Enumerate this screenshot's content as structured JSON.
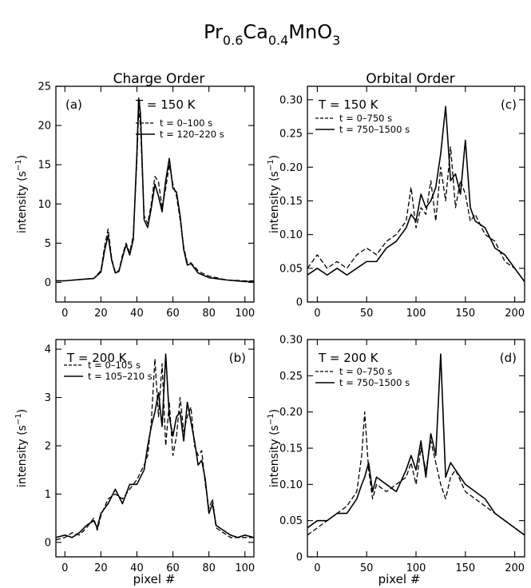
{
  "figure": {
    "title_main": "Pr",
    "title_sub1": "0.6",
    "title_ca": "Ca",
    "title_sub2": "0.4",
    "title_mno": "MnO",
    "title_sub3": "3",
    "col_left": "Charge Order",
    "col_right": "Orbital Order",
    "xlabel": "pixel #",
    "ylabel_left": "intensity (s",
    "ylabel_right": "intensity (s",
    "ylabel_exp": "−1",
    "ylabel_close": ")"
  },
  "chart_data": [
    {
      "id": "a",
      "type": "line",
      "panel_label": "(a)",
      "temperature": "T = 150 K",
      "xlabel": "",
      "ylabel": "intensity (s−1)",
      "xlim": [
        -5,
        105
      ],
      "ylim": [
        -2.5,
        25
      ],
      "xticks": [
        0,
        20,
        40,
        60,
        80,
        100
      ],
      "yticks": [
        0,
        5,
        10,
        15,
        20,
        25
      ],
      "legend_position": "top-right",
      "series": [
        {
          "name": "t = 0–100 s",
          "style": "dashed",
          "x": [
            -5,
            0,
            10,
            16,
            20,
            22,
            24,
            26,
            28,
            30,
            32,
            34,
            36,
            38,
            40,
            41,
            42,
            44,
            46,
            48,
            50,
            52,
            54,
            56,
            58,
            60,
            62,
            64,
            66,
            68,
            70,
            72,
            74,
            76,
            80,
            90,
            100,
            105
          ],
          "y": [
            0.2,
            0.2,
            0.4,
            0.5,
            1.5,
            4.5,
            6.8,
            3.0,
            1.3,
            1.5,
            3.5,
            5.0,
            3.8,
            6.0,
            15.5,
            22.0,
            20.0,
            8.5,
            7.5,
            10.0,
            13.5,
            12.8,
            9.5,
            12.0,
            15.0,
            12.5,
            11.0,
            8.0,
            4.5,
            2.5,
            2.5,
            2.0,
            1.5,
            1.2,
            0.8,
            0.3,
            0.2,
            0.2
          ]
        },
        {
          "name": "t = 120–220 s",
          "style": "solid",
          "x": [
            -5,
            0,
            10,
            16,
            20,
            22,
            24,
            26,
            28,
            30,
            32,
            34,
            36,
            38,
            40,
            41,
            42,
            44,
            46,
            48,
            50,
            52,
            54,
            56,
            58,
            60,
            62,
            64,
            66,
            68,
            70,
            72,
            74,
            76,
            80,
            90,
            100,
            105
          ],
          "y": [
            0.2,
            0.2,
            0.4,
            0.5,
            1.3,
            4.0,
            6.0,
            2.8,
            1.2,
            1.4,
            3.2,
            4.8,
            3.5,
            5.5,
            16.5,
            23.5,
            21.5,
            8.0,
            7.0,
            9.5,
            12.5,
            11.0,
            9.0,
            13.0,
            15.8,
            12.0,
            11.5,
            8.5,
            4.2,
            2.2,
            2.4,
            1.8,
            1.2,
            1.0,
            0.6,
            0.3,
            0.1,
            0.1
          ]
        }
      ]
    },
    {
      "id": "b",
      "type": "line",
      "panel_label": "(b)",
      "temperature": "T = 200 K",
      "xlabel": "pixel #",
      "ylabel": "intensity (s−1)",
      "xlim": [
        -5,
        105
      ],
      "ylim": [
        -0.3,
        4.2
      ],
      "xticks": [
        0,
        20,
        40,
        60,
        80,
        100
      ],
      "yticks": [
        0,
        1,
        2,
        3,
        4
      ],
      "legend_position": "top-left",
      "series": [
        {
          "name": "t = 0–105 s",
          "style": "dashed",
          "x": [
            -5,
            0,
            4,
            8,
            12,
            16,
            18,
            20,
            24,
            28,
            32,
            36,
            40,
            44,
            46,
            48,
            50,
            52,
            54,
            56,
            58,
            60,
            62,
            64,
            66,
            68,
            70,
            72,
            74,
            76,
            78,
            80,
            82,
            84,
            88,
            92,
            96,
            100,
            105
          ],
          "y": [
            0.05,
            0.1,
            0.2,
            0.15,
            0.3,
            0.5,
            0.25,
            0.55,
            0.9,
            1.0,
            0.9,
            1.1,
            1.3,
            1.6,
            1.8,
            2.5,
            3.8,
            2.6,
            3.7,
            2.0,
            2.9,
            1.8,
            2.2,
            3.0,
            2.3,
            2.6,
            2.8,
            2.0,
            1.8,
            1.9,
            1.2,
            0.7,
            0.9,
            0.3,
            0.2,
            0.1,
            0.1,
            0.1,
            0.1
          ]
        },
        {
          "name": "t = 105–210 s",
          "style": "solid",
          "x": [
            -5,
            0,
            4,
            8,
            12,
            16,
            18,
            20,
            24,
            28,
            32,
            36,
            40,
            44,
            46,
            48,
            50,
            52,
            54,
            56,
            58,
            60,
            62,
            64,
            66,
            68,
            70,
            72,
            74,
            76,
            78,
            80,
            82,
            84,
            88,
            92,
            96,
            100,
            105
          ],
          "y": [
            0.1,
            0.15,
            0.1,
            0.2,
            0.35,
            0.45,
            0.3,
            0.6,
            0.8,
            1.1,
            0.8,
            1.2,
            1.2,
            1.5,
            2.0,
            2.4,
            2.7,
            3.1,
            2.4,
            3.9,
            2.6,
            2.2,
            2.6,
            2.7,
            2.1,
            2.9,
            2.5,
            2.1,
            1.6,
            1.7,
            1.3,
            0.6,
            0.8,
            0.35,
            0.25,
            0.15,
            0.1,
            0.15,
            0.1
          ]
        }
      ]
    },
    {
      "id": "c",
      "type": "line",
      "panel_label": "(c)",
      "temperature": "T = 150 K",
      "xlabel": "",
      "ylabel": "intensity (s−1)",
      "xlim": [
        -10,
        210
      ],
      "ylim": [
        0,
        0.32
      ],
      "xticks": [
        0,
        50,
        100,
        150,
        200
      ],
      "yticks": [
        0,
        0.05,
        0.1,
        0.15,
        0.2,
        0.25,
        0.3
      ],
      "ytick_labels": [
        "0",
        "0.05",
        "0.10",
        "0.15",
        "0.20",
        "0.25",
        "0.30"
      ],
      "legend_position": "top-left",
      "series": [
        {
          "name": "t = 0–750 s",
          "style": "dashed",
          "x": [
            -10,
            0,
            10,
            20,
            30,
            40,
            50,
            60,
            70,
            80,
            90,
            95,
            100,
            105,
            110,
            115,
            120,
            125,
            130,
            135,
            140,
            145,
            150,
            155,
            160,
            170,
            180,
            190,
            200,
            210
          ],
          "y": [
            0.05,
            0.07,
            0.05,
            0.06,
            0.05,
            0.07,
            0.08,
            0.07,
            0.09,
            0.1,
            0.12,
            0.17,
            0.11,
            0.14,
            0.13,
            0.18,
            0.12,
            0.2,
            0.15,
            0.23,
            0.14,
            0.18,
            0.16,
            0.12,
            0.13,
            0.1,
            0.09,
            0.06,
            0.05,
            0.03
          ]
        },
        {
          "name": "t = 750–1500 s",
          "style": "solid",
          "x": [
            -10,
            0,
            10,
            20,
            30,
            40,
            50,
            60,
            70,
            80,
            90,
            95,
            100,
            105,
            110,
            115,
            120,
            125,
            130,
            135,
            140,
            145,
            150,
            155,
            160,
            170,
            180,
            190,
            200,
            210
          ],
          "y": [
            0.04,
            0.05,
            0.04,
            0.05,
            0.04,
            0.05,
            0.06,
            0.06,
            0.08,
            0.09,
            0.11,
            0.13,
            0.12,
            0.16,
            0.14,
            0.15,
            0.17,
            0.22,
            0.29,
            0.18,
            0.19,
            0.16,
            0.24,
            0.14,
            0.12,
            0.11,
            0.08,
            0.07,
            0.05,
            0.03
          ]
        }
      ]
    },
    {
      "id": "d",
      "type": "line",
      "panel_label": "(d)",
      "temperature": "T = 200 K",
      "xlabel": "pixel #",
      "ylabel": "intensity (s−1)",
      "xlim": [
        -10,
        210
      ],
      "ylim": [
        0,
        0.3
      ],
      "xticks": [
        0,
        50,
        100,
        150,
        200
      ],
      "yticks": [
        0,
        0.05,
        0.1,
        0.15,
        0.2,
        0.25,
        0.3
      ],
      "ytick_labels": [
        "0",
        "0.05",
        "0.10",
        "0.15",
        "0.20",
        "0.25",
        "0.30"
      ],
      "legend_position": "top-left",
      "series": [
        {
          "name": "t = 0–750 s",
          "style": "dashed",
          "x": [
            -10,
            0,
            10,
            20,
            30,
            40,
            45,
            48,
            52,
            56,
            60,
            70,
            80,
            90,
            95,
            100,
            105,
            110,
            115,
            120,
            125,
            130,
            135,
            140,
            150,
            160,
            170,
            180,
            190,
            200,
            210
          ],
          "y": [
            0.03,
            0.04,
            0.05,
            0.06,
            0.07,
            0.09,
            0.14,
            0.2,
            0.12,
            0.08,
            0.1,
            0.09,
            0.1,
            0.11,
            0.13,
            0.1,
            0.15,
            0.12,
            0.16,
            0.13,
            0.1,
            0.08,
            0.11,
            0.12,
            0.09,
            0.08,
            0.07,
            0.06,
            0.05,
            0.04,
            0.03
          ]
        },
        {
          "name": "t = 750–1500 s",
          "style": "solid",
          "x": [
            -10,
            0,
            10,
            20,
            30,
            40,
            45,
            48,
            52,
            56,
            60,
            70,
            80,
            90,
            95,
            100,
            105,
            110,
            115,
            120,
            125,
            130,
            135,
            140,
            150,
            160,
            170,
            180,
            190,
            200,
            210
          ],
          "y": [
            0.04,
            0.05,
            0.05,
            0.06,
            0.06,
            0.08,
            0.1,
            0.11,
            0.13,
            0.09,
            0.11,
            0.1,
            0.09,
            0.12,
            0.14,
            0.12,
            0.16,
            0.11,
            0.17,
            0.14,
            0.28,
            0.11,
            0.13,
            0.12,
            0.1,
            0.09,
            0.08,
            0.06,
            0.05,
            0.04,
            0.03
          ]
        }
      ]
    }
  ]
}
